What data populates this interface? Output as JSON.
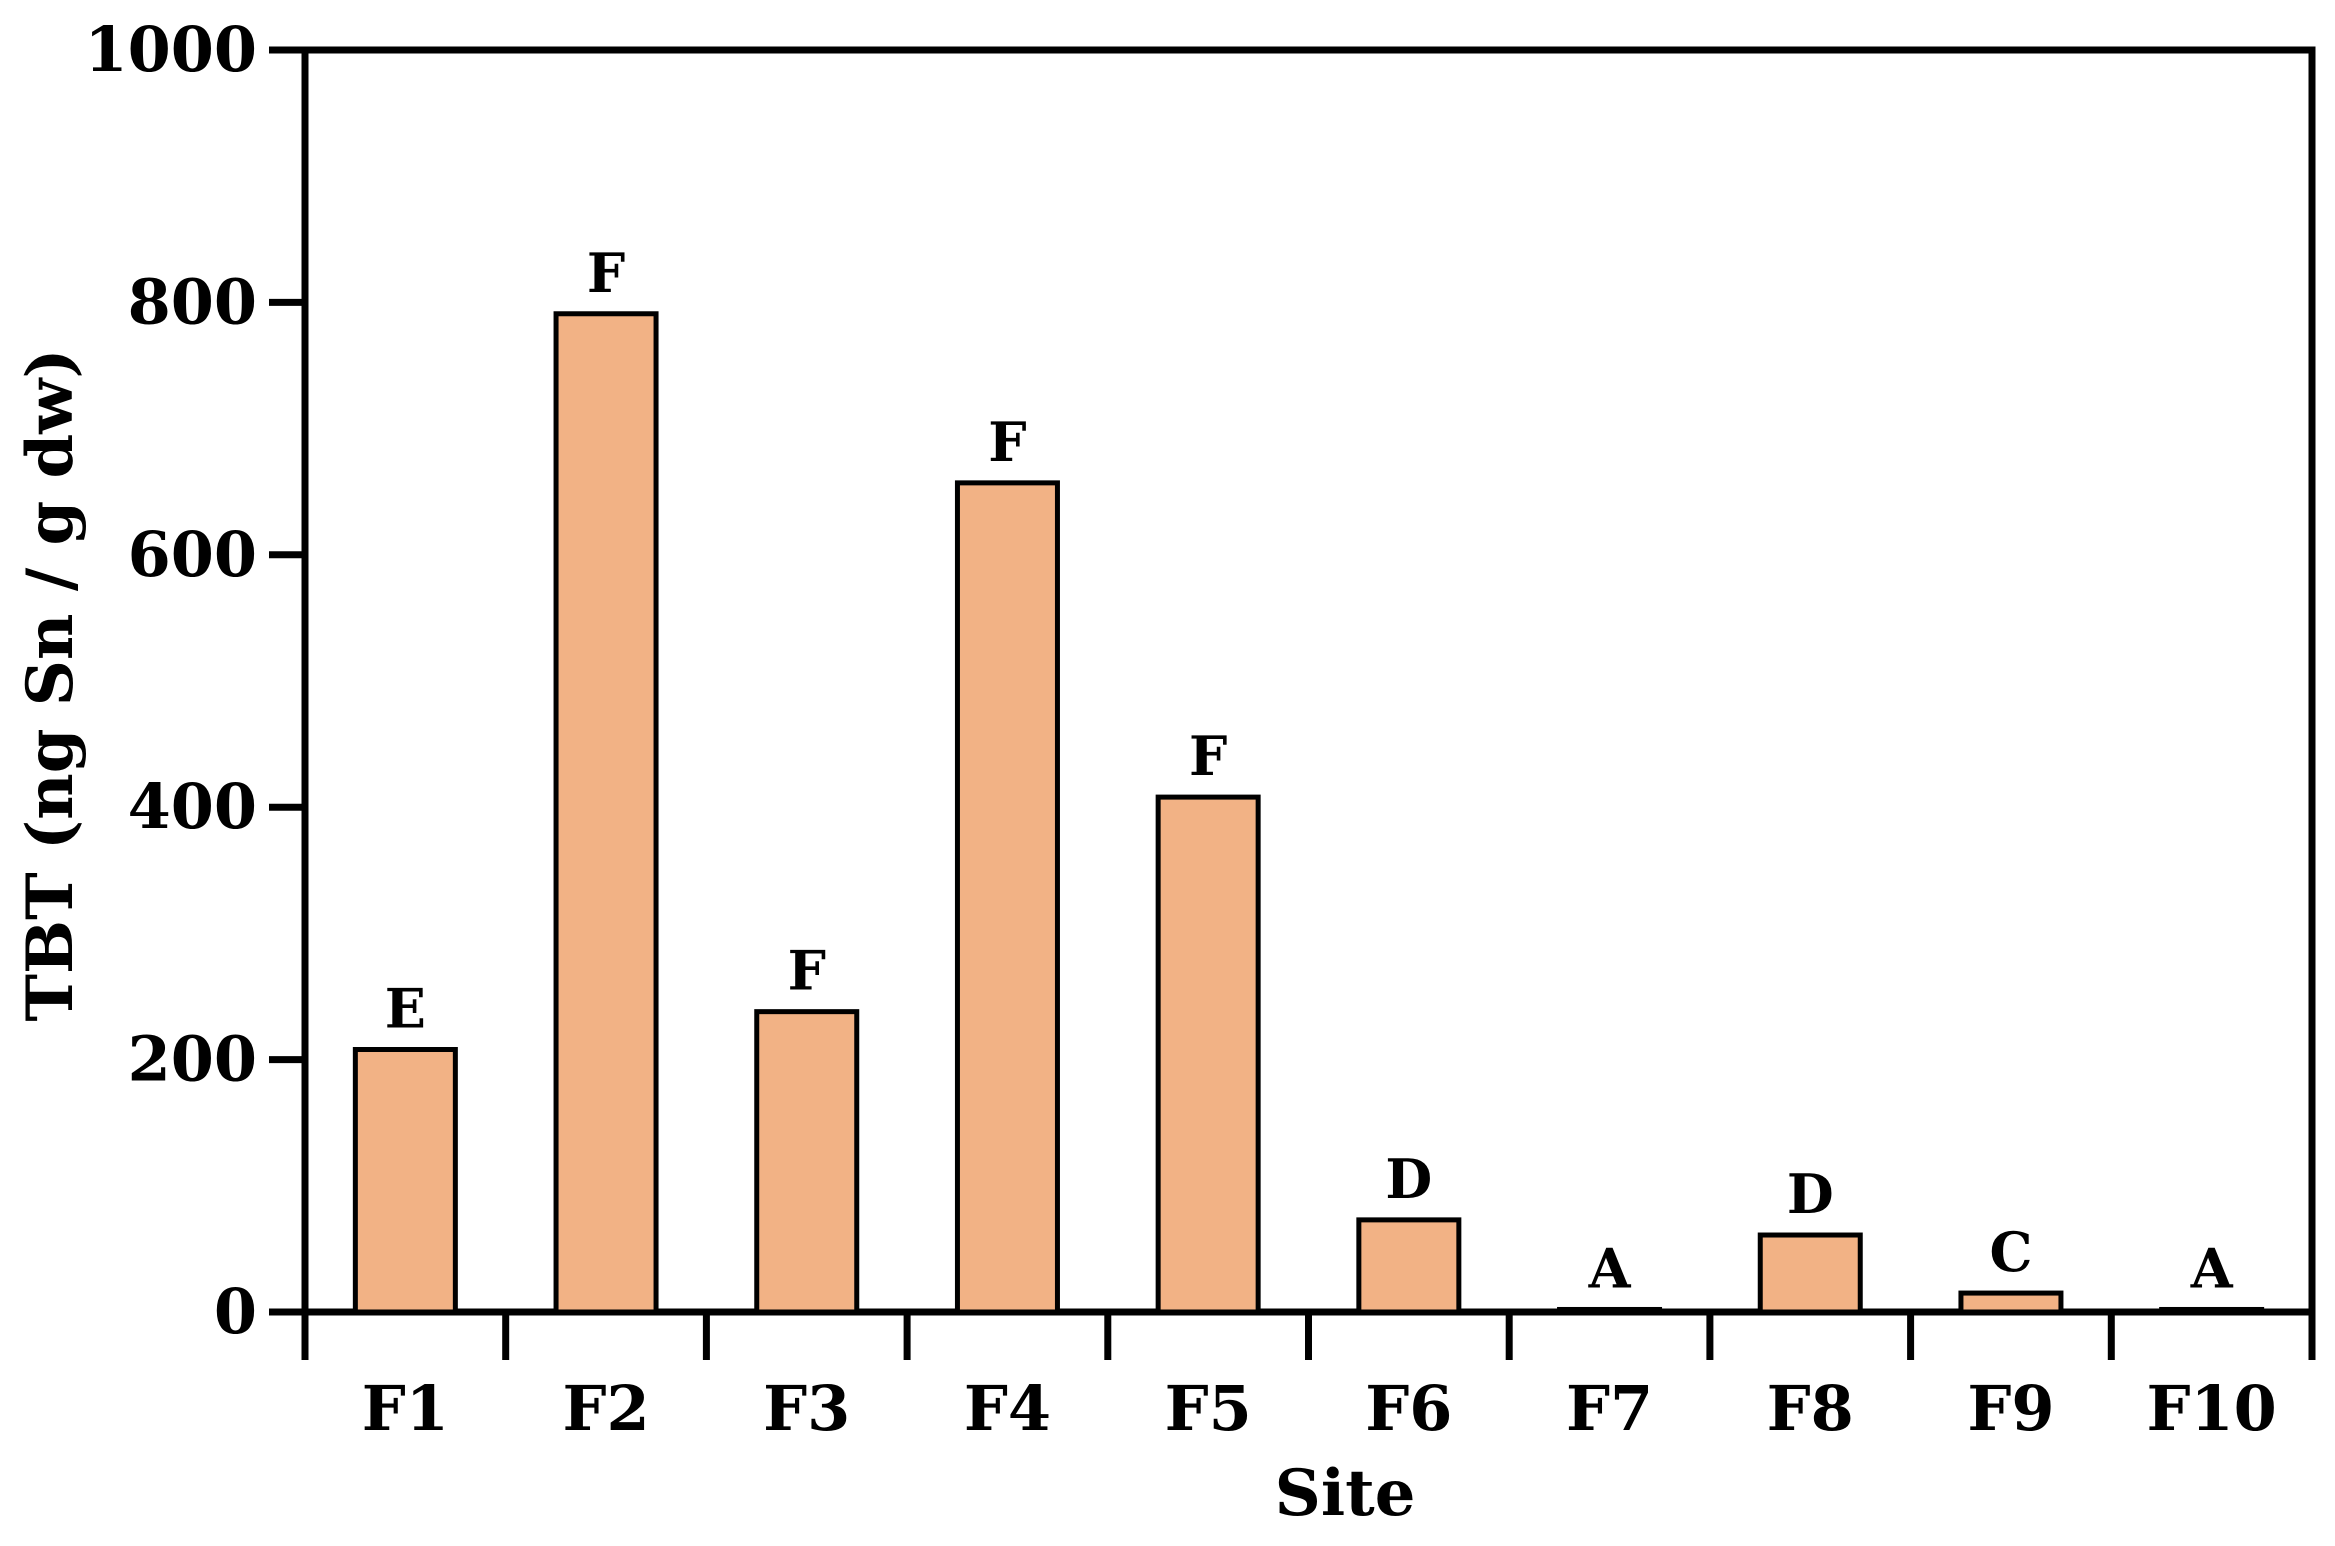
{
  "chart_data": {
    "type": "bar",
    "title": "",
    "xlabel": "Site",
    "ylabel": "TBT (ng Sn / g dw)",
    "ylim": [
      0,
      1000
    ],
    "yticks": [
      0,
      200,
      400,
      600,
      800,
      1000
    ],
    "grid": false,
    "legend": "none",
    "categories": [
      "F1",
      "F2",
      "F3",
      "F4",
      "F5",
      "F6",
      "F7",
      "F8",
      "F9",
      "F10"
    ],
    "values": [
      208,
      791,
      238,
      657,
      408,
      73,
      2,
      61,
      15,
      2
    ],
    "annotations": [
      "E",
      "F",
      "F",
      "F",
      "F",
      "D",
      "A",
      "D",
      "C",
      "A"
    ],
    "colors": {
      "bar_fill": "#F2B285",
      "bar_stroke": "#000000",
      "axis": "#000000"
    }
  }
}
